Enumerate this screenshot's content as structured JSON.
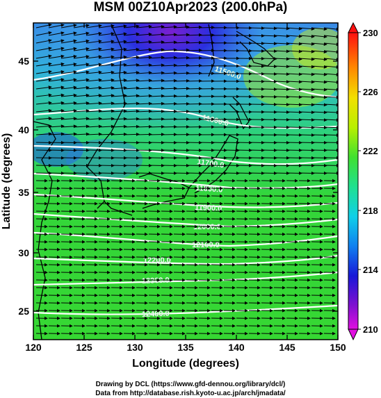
{
  "title": "MSM 00Z10Apr2023 (200.0hPa)",
  "x_axis": {
    "label": "Longitude (degrees)",
    "ticks": [
      "120",
      "125",
      "130",
      "135",
      "140",
      "145",
      "150"
    ]
  },
  "y_axis": {
    "label": "Latitude  (degrees)",
    "ticks": [
      "25",
      "30",
      "35",
      "40",
      "45"
    ]
  },
  "colorbar": {
    "ticks": [
      "230",
      "226",
      "222",
      "218",
      "214",
      "210"
    ],
    "min": 210,
    "max": 230
  },
  "contours": [
    {
      "label": "11500.0"
    },
    {
      "label": "11600.0"
    },
    {
      "label": "11700.0"
    },
    {
      "label": "11800.0"
    },
    {
      "label": "11900.0"
    },
    {
      "label": "12000.0"
    },
    {
      "label": "12100.0"
    },
    {
      "label": "12200.0"
    },
    {
      "label": "12300.0"
    },
    {
      "label": "12400.0"
    }
  ],
  "credits": {
    "line1": "Drawing by DCL (https://www.gfd-dennou.org/library/dcl/)",
    "line2": "Data from http://database.rish.kyoto-u.ac.jp/arch/jmadata/"
  },
  "colors": {
    "frame": "#000000",
    "contour": "#ffffff",
    "arrow": "#000000"
  }
}
